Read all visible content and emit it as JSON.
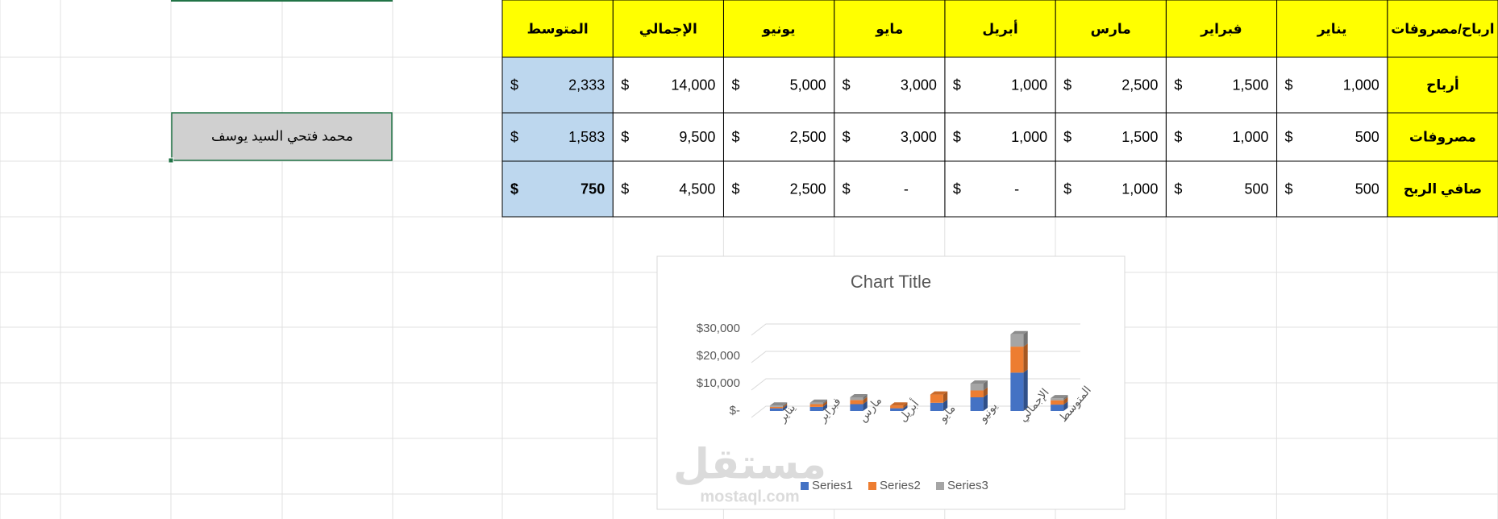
{
  "table": {
    "columns": [
      "ارباح/مصروفات",
      "يناير",
      "فبراير",
      "مارس",
      "أبريل",
      "مايو",
      "يونيو",
      "الإجمالي",
      "المتوسط"
    ],
    "currency": "$",
    "rows": [
      {
        "label": "أرباح",
        "cells": [
          "1,000",
          "1,500",
          "2,500",
          "1,000",
          "3,000",
          "5,000",
          "14,000",
          "2,333"
        ]
      },
      {
        "label": "مصروفات",
        "cells": [
          "500",
          "1,000",
          "1,500",
          "1,000",
          "3,000",
          "2,500",
          "9,500",
          "1,583"
        ]
      },
      {
        "label": "صافي الربح",
        "cells": [
          "500",
          "500",
          "1,000",
          "-",
          "-",
          "2,500",
          "4,500",
          "750"
        ]
      }
    ]
  },
  "name_box": "محمد فتحي السيد يوسف",
  "watermark": {
    "brand": "مستقل",
    "site": "mostaql.com"
  },
  "chart_data": {
    "type": "bar",
    "stacked": true,
    "title": "Chart Title",
    "categories": [
      "يناير",
      "فبراير",
      "مارس",
      "أبريل",
      "مايو",
      "يونيو",
      "الإجمالي",
      "المتوسط"
    ],
    "series": [
      {
        "name": "Series1",
        "color": "#4472c4",
        "values": [
          1000,
          1500,
          2500,
          1000,
          3000,
          5000,
          14000,
          2333
        ]
      },
      {
        "name": "Series2",
        "color": "#ed7d31",
        "values": [
          500,
          1000,
          1500,
          1000,
          3000,
          2500,
          9500,
          1583
        ]
      },
      {
        "name": "Series3",
        "color": "#a5a5a5",
        "values": [
          500,
          500,
          1000,
          0,
          0,
          2500,
          4500,
          750
        ]
      }
    ],
    "ylim": [
      0,
      30000
    ],
    "yticks": [
      {
        "value": 0,
        "label": "$-"
      },
      {
        "value": 10000,
        "label": "$10,000"
      },
      {
        "value": 20000,
        "label": "$20,000"
      },
      {
        "value": 30000,
        "label": "$30,000"
      }
    ],
    "grid": true,
    "legend": "bottom"
  }
}
